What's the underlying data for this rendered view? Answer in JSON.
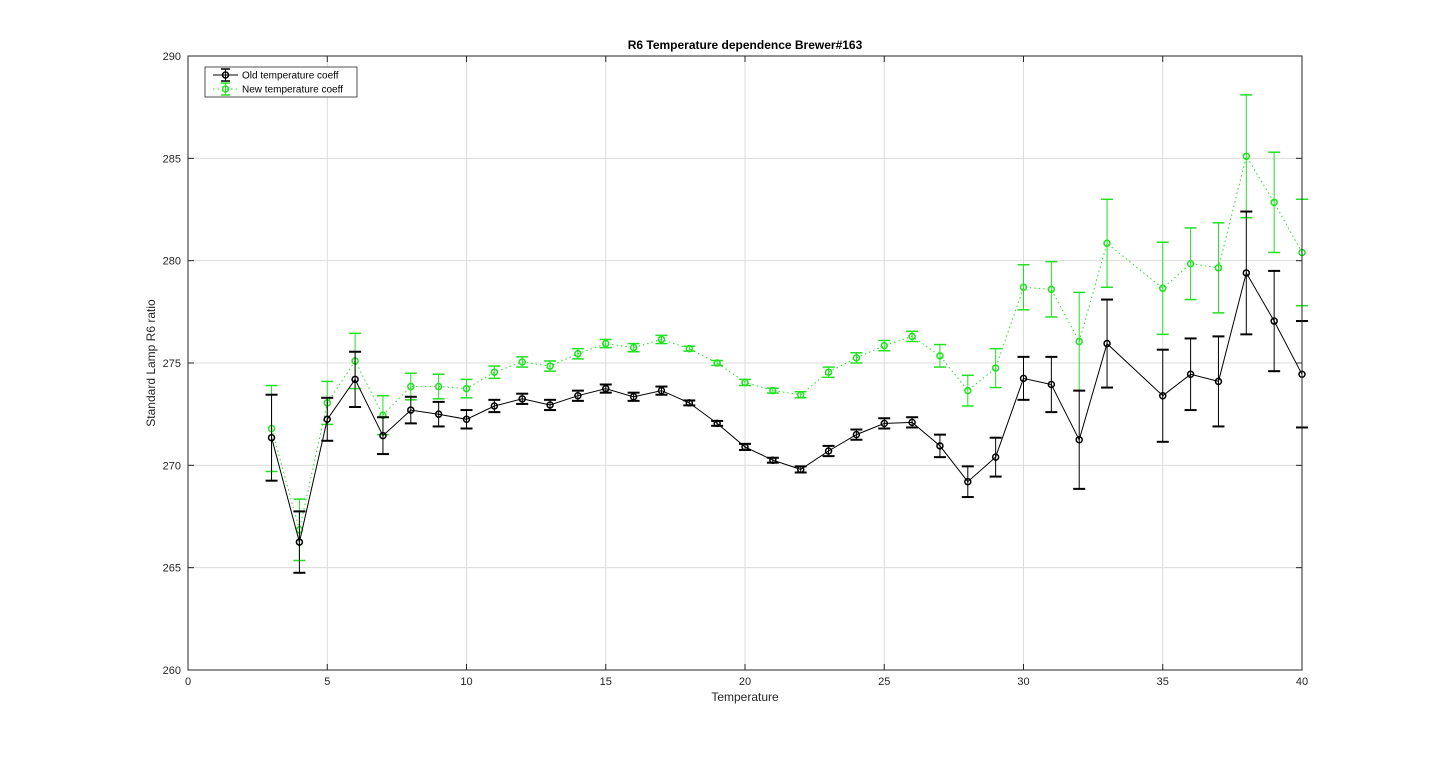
{
  "figure": {
    "background": "#ffffff"
  },
  "chart_data": {
    "type": "line",
    "title": "R6 Temperature dependence Brewer#163",
    "xlabel": "Temperature",
    "ylabel": "Standard Lamp R6 ratio",
    "xlim": [
      0,
      40
    ],
    "ylim": [
      260,
      290
    ],
    "xticks": [
      0,
      5,
      10,
      15,
      20,
      25,
      30,
      35,
      40
    ],
    "yticks": [
      260,
      265,
      270,
      275,
      280,
      285,
      290
    ],
    "grid": true,
    "legend_position": "top-left",
    "series": [
      {
        "name": "Old temperature coeff",
        "color": "#000000",
        "line_style": "solid",
        "marker": "circle",
        "x": [
          3,
          4,
          5,
          6,
          7,
          8,
          9,
          10,
          11,
          12,
          13,
          14,
          15,
          16,
          17,
          18,
          19,
          20,
          21,
          22,
          23,
          24,
          25,
          26,
          27,
          28,
          29,
          30,
          31,
          32,
          33,
          35,
          36,
          37,
          38,
          39,
          40
        ],
        "y": [
          271.35,
          266.25,
          272.25,
          274.2,
          271.45,
          272.7,
          272.5,
          272.25,
          272.9,
          273.25,
          272.95,
          273.4,
          273.75,
          273.35,
          273.65,
          273.05,
          272.05,
          270.9,
          270.25,
          269.8,
          270.7,
          271.5,
          272.05,
          272.1,
          270.95,
          269.2,
          270.4,
          274.25,
          273.95,
          271.25,
          275.95,
          273.4,
          274.45,
          274.1,
          279.4,
          277.05,
          274.45
        ],
        "err": [
          2.1,
          1.5,
          1.05,
          1.35,
          0.9,
          0.65,
          0.6,
          0.45,
          0.3,
          0.25,
          0.25,
          0.25,
          0.2,
          0.2,
          0.2,
          0.12,
          0.12,
          0.15,
          0.12,
          0.15,
          0.25,
          0.25,
          0.25,
          0.25,
          0.55,
          0.75,
          0.95,
          1.05,
          1.35,
          2.4,
          2.15,
          2.25,
          1.75,
          2.2,
          3.0,
          2.45,
          2.6
        ]
      },
      {
        "name": "New temperature coeff",
        "color": "#22e022",
        "line_style": "dotted",
        "marker": "circle",
        "x": [
          3,
          4,
          5,
          6,
          7,
          8,
          9,
          10,
          11,
          12,
          13,
          14,
          15,
          16,
          17,
          18,
          19,
          20,
          21,
          22,
          23,
          24,
          25,
          26,
          27,
          28,
          29,
          30,
          31,
          32,
          33,
          35,
          36,
          37,
          38,
          39,
          40
        ],
        "y": [
          271.8,
          266.85,
          273.05,
          275.1,
          272.45,
          273.85,
          273.85,
          273.75,
          274.55,
          275.05,
          274.85,
          275.45,
          275.95,
          275.75,
          276.15,
          275.7,
          275.0,
          274.05,
          273.65,
          273.45,
          274.55,
          275.25,
          275.85,
          276.3,
          275.35,
          273.65,
          274.75,
          278.7,
          278.6,
          276.05,
          280.85,
          278.65,
          279.85,
          279.65,
          285.1,
          282.85,
          280.4
        ],
        "err": [
          2.1,
          1.5,
          1.05,
          1.35,
          0.95,
          0.65,
          0.6,
          0.45,
          0.3,
          0.25,
          0.25,
          0.25,
          0.2,
          0.2,
          0.2,
          0.12,
          0.12,
          0.15,
          0.12,
          0.15,
          0.25,
          0.25,
          0.25,
          0.25,
          0.55,
          0.75,
          0.95,
          1.1,
          1.35,
          2.4,
          2.15,
          2.25,
          1.75,
          2.2,
          3.0,
          2.45,
          2.6
        ]
      }
    ]
  }
}
